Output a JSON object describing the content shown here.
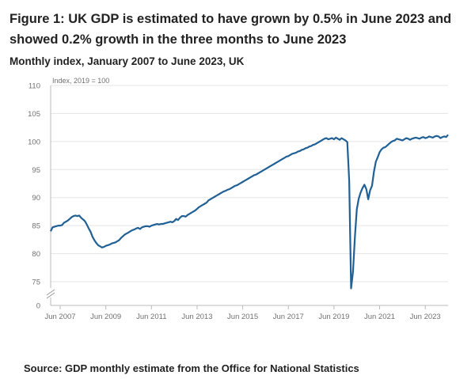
{
  "header": {
    "title": "Figure 1: UK GDP is estimated to have grown by 0.5% in June 2023 and showed 0.2% growth in the three months to June 2023",
    "subtitle": "Monthly index, January 2007 to June 2023, UK"
  },
  "footer": {
    "source": "Source: GDP monthly estimate from the Office for National Statistics"
  },
  "colors": {
    "line": "#206095",
    "axis": "#bbbbbb",
    "grid": "#e5e5e5",
    "text": "#707070"
  },
  "chart_data": {
    "type": "line",
    "title": "Monthly index, January 2007 to June 2023, UK",
    "unit_label": "Index, 2019 = 100",
    "y_axis_break": true,
    "grid": true,
    "ylim": [
      70,
      110
    ],
    "y_ticks": [
      "110",
      "105",
      "100",
      "95",
      "90",
      "85",
      "80",
      "75",
      "0"
    ],
    "x_ticks": [
      "Jun 2007",
      "Jun 2009",
      "Jun 2011",
      "Jun 2013",
      "Jun 2015",
      "Jun 2017",
      "Jun 2019",
      "Jun 2021",
      "Jun 2023"
    ],
    "series": [
      {
        "x_start": "2007-01",
        "frequency": "monthly",
        "values": [
          84.0,
          84.7,
          84.8,
          84.9,
          85.0,
          85.0,
          85.1,
          85.5,
          85.7,
          85.9,
          86.2,
          86.5,
          86.7,
          86.8,
          86.7,
          86.8,
          86.4,
          86.1,
          85.8,
          85.2,
          84.5,
          83.9,
          83.0,
          82.4,
          81.9,
          81.5,
          81.3,
          81.1,
          81.2,
          81.4,
          81.5,
          81.6,
          81.8,
          81.9,
          82.0,
          82.2,
          82.4,
          82.8,
          83.1,
          83.4,
          83.6,
          83.8,
          84.0,
          84.2,
          84.3,
          84.5,
          84.6,
          84.4,
          84.7,
          84.8,
          84.9,
          84.9,
          84.8,
          85.0,
          85.1,
          85.2,
          85.3,
          85.2,
          85.3,
          85.3,
          85.4,
          85.5,
          85.6,
          85.7,
          85.6,
          85.8,
          86.2,
          86.0,
          86.4,
          86.7,
          86.7,
          86.6,
          86.9,
          87.1,
          87.3,
          87.5,
          87.7,
          88.0,
          88.3,
          88.5,
          88.7,
          88.9,
          89.1,
          89.5,
          89.7,
          89.9,
          90.1,
          90.3,
          90.5,
          90.7,
          90.9,
          91.1,
          91.2,
          91.4,
          91.5,
          91.7,
          91.9,
          92.1,
          92.2,
          92.4,
          92.6,
          92.8,
          93.0,
          93.2,
          93.4,
          93.6,
          93.8,
          94.0,
          94.1,
          94.3,
          94.5,
          94.7,
          94.9,
          95.1,
          95.3,
          95.5,
          95.7,
          95.9,
          96.1,
          96.3,
          96.5,
          96.7,
          96.9,
          97.1,
          97.3,
          97.4,
          97.6,
          97.8,
          97.9,
          98.0,
          98.2,
          98.3,
          98.5,
          98.6,
          98.8,
          98.9,
          99.1,
          99.2,
          99.4,
          99.5,
          99.7,
          99.9,
          100.1,
          100.3,
          100.5,
          100.6,
          100.4,
          100.5,
          100.6,
          100.4,
          100.7,
          100.5,
          100.3,
          100.6,
          100.4,
          100.2,
          99.9,
          93.0,
          73.8,
          76.8,
          83.0,
          87.9,
          89.8,
          90.9,
          91.7,
          92.3,
          91.5,
          89.7,
          91.3,
          92.1,
          94.6,
          96.4,
          97.2,
          98.1,
          98.6,
          98.9,
          99.0,
          99.3,
          99.6,
          99.9,
          100.1,
          100.2,
          100.5,
          100.4,
          100.3,
          100.2,
          100.4,
          100.6,
          100.5,
          100.3,
          100.5,
          100.6,
          100.7,
          100.6,
          100.5,
          100.7,
          100.8,
          100.6,
          100.7,
          100.9,
          100.8,
          100.7,
          100.9,
          101.0,
          100.9,
          100.6,
          100.8,
          100.9,
          100.8,
          101.2
        ]
      }
    ]
  }
}
